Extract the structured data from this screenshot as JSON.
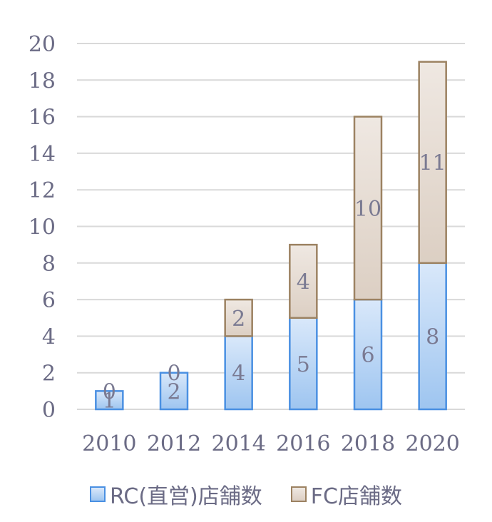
{
  "chart_data": {
    "type": "bar",
    "stacked": true,
    "categories": [
      "2010",
      "2012",
      "2014",
      "2016",
      "2018",
      "2020"
    ],
    "series": [
      {
        "name": "RC(直営)店舗数",
        "values": [
          1,
          2,
          4,
          5,
          6,
          8
        ],
        "color": "#9ec5f0",
        "border": "#4a90e2"
      },
      {
        "name": "FC店舗数",
        "values": [
          0,
          0,
          2,
          4,
          10,
          11
        ],
        "color": "#e6dcd3",
        "border": "#9c8262"
      }
    ],
    "ylim": [
      0,
      20
    ],
    "yticks": [
      0,
      2,
      4,
      6,
      8,
      10,
      12,
      14,
      16,
      18,
      20
    ],
    "grid": true,
    "legend": "bottom"
  }
}
